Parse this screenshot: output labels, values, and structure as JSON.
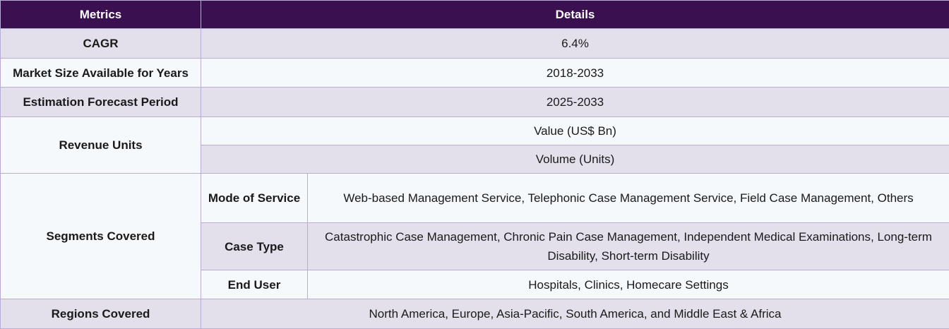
{
  "header": {
    "metrics": "Metrics",
    "details": "Details"
  },
  "rows": {
    "cagr": {
      "label": "CAGR",
      "value": "6.4%"
    },
    "market_size": {
      "label": "Market Size Available for Years",
      "value": "2018-2033"
    },
    "forecast": {
      "label": "Estimation Forecast Period",
      "value": "2025-2033"
    },
    "revenue": {
      "label": "Revenue Units",
      "values": [
        "Value (US$ Bn)",
        "Volume (Units)"
      ]
    },
    "segments": {
      "label": "Segments Covered",
      "items": [
        {
          "name": "Mode of Service",
          "value": "Web-based Management Service, Telephonic Case Management Service, Field Case Management, Others"
        },
        {
          "name": "Case Type",
          "value": "Catastrophic Case Management, Chronic Pain Case Management, Independent Medical Examinations, Long-term Disability, Short-term Disability"
        },
        {
          "name": "End User",
          "value": "Hospitals, Clinics, Homecare Settings"
        }
      ]
    },
    "regions": {
      "label": "Regions Covered",
      "value": "North America, Europe, Asia-Pacific, South America, and Middle East & Africa"
    }
  }
}
